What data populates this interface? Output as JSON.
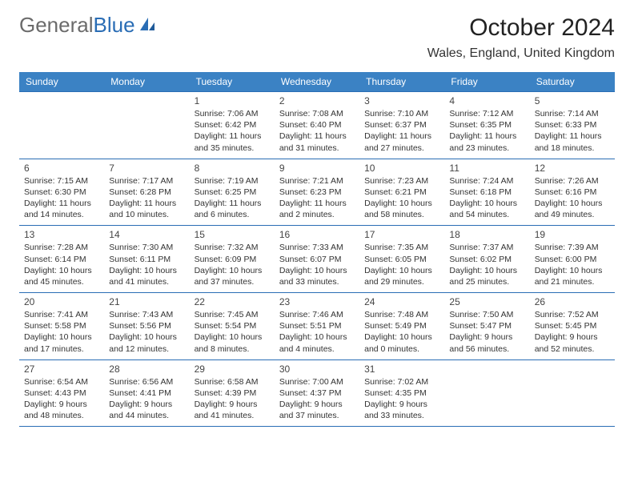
{
  "brand": {
    "part1": "General",
    "part2": "Blue"
  },
  "title": "October 2024",
  "location": "Wales, England, United Kingdom",
  "colors": {
    "header_bg": "#3b82c4",
    "border": "#2a6db5",
    "brand_grey": "#6b6b6b",
    "brand_blue": "#2a6db5"
  },
  "type": "calendar",
  "days_of_week": [
    "Sunday",
    "Monday",
    "Tuesday",
    "Wednesday",
    "Thursday",
    "Friday",
    "Saturday"
  ],
  "weeks": [
    [
      null,
      null,
      {
        "n": "1",
        "sunrise": "7:06 AM",
        "sunset": "6:42 PM",
        "daylight": "11 hours and 35 minutes."
      },
      {
        "n": "2",
        "sunrise": "7:08 AM",
        "sunset": "6:40 PM",
        "daylight": "11 hours and 31 minutes."
      },
      {
        "n": "3",
        "sunrise": "7:10 AM",
        "sunset": "6:37 PM",
        "daylight": "11 hours and 27 minutes."
      },
      {
        "n": "4",
        "sunrise": "7:12 AM",
        "sunset": "6:35 PM",
        "daylight": "11 hours and 23 minutes."
      },
      {
        "n": "5",
        "sunrise": "7:14 AM",
        "sunset": "6:33 PM",
        "daylight": "11 hours and 18 minutes."
      }
    ],
    [
      {
        "n": "6",
        "sunrise": "7:15 AM",
        "sunset": "6:30 PM",
        "daylight": "11 hours and 14 minutes."
      },
      {
        "n": "7",
        "sunrise": "7:17 AM",
        "sunset": "6:28 PM",
        "daylight": "11 hours and 10 minutes."
      },
      {
        "n": "8",
        "sunrise": "7:19 AM",
        "sunset": "6:25 PM",
        "daylight": "11 hours and 6 minutes."
      },
      {
        "n": "9",
        "sunrise": "7:21 AM",
        "sunset": "6:23 PM",
        "daylight": "11 hours and 2 minutes."
      },
      {
        "n": "10",
        "sunrise": "7:23 AM",
        "sunset": "6:21 PM",
        "daylight": "10 hours and 58 minutes."
      },
      {
        "n": "11",
        "sunrise": "7:24 AM",
        "sunset": "6:18 PM",
        "daylight": "10 hours and 54 minutes."
      },
      {
        "n": "12",
        "sunrise": "7:26 AM",
        "sunset": "6:16 PM",
        "daylight": "10 hours and 49 minutes."
      }
    ],
    [
      {
        "n": "13",
        "sunrise": "7:28 AM",
        "sunset": "6:14 PM",
        "daylight": "10 hours and 45 minutes."
      },
      {
        "n": "14",
        "sunrise": "7:30 AM",
        "sunset": "6:11 PM",
        "daylight": "10 hours and 41 minutes."
      },
      {
        "n": "15",
        "sunrise": "7:32 AM",
        "sunset": "6:09 PM",
        "daylight": "10 hours and 37 minutes."
      },
      {
        "n": "16",
        "sunrise": "7:33 AM",
        "sunset": "6:07 PM",
        "daylight": "10 hours and 33 minutes."
      },
      {
        "n": "17",
        "sunrise": "7:35 AM",
        "sunset": "6:05 PM",
        "daylight": "10 hours and 29 minutes."
      },
      {
        "n": "18",
        "sunrise": "7:37 AM",
        "sunset": "6:02 PM",
        "daylight": "10 hours and 25 minutes."
      },
      {
        "n": "19",
        "sunrise": "7:39 AM",
        "sunset": "6:00 PM",
        "daylight": "10 hours and 21 minutes."
      }
    ],
    [
      {
        "n": "20",
        "sunrise": "7:41 AM",
        "sunset": "5:58 PM",
        "daylight": "10 hours and 17 minutes."
      },
      {
        "n": "21",
        "sunrise": "7:43 AM",
        "sunset": "5:56 PM",
        "daylight": "10 hours and 12 minutes."
      },
      {
        "n": "22",
        "sunrise": "7:45 AM",
        "sunset": "5:54 PM",
        "daylight": "10 hours and 8 minutes."
      },
      {
        "n": "23",
        "sunrise": "7:46 AM",
        "sunset": "5:51 PM",
        "daylight": "10 hours and 4 minutes."
      },
      {
        "n": "24",
        "sunrise": "7:48 AM",
        "sunset": "5:49 PM",
        "daylight": "10 hours and 0 minutes."
      },
      {
        "n": "25",
        "sunrise": "7:50 AM",
        "sunset": "5:47 PM",
        "daylight": "9 hours and 56 minutes."
      },
      {
        "n": "26",
        "sunrise": "7:52 AM",
        "sunset": "5:45 PM",
        "daylight": "9 hours and 52 minutes."
      }
    ],
    [
      {
        "n": "27",
        "sunrise": "6:54 AM",
        "sunset": "4:43 PM",
        "daylight": "9 hours and 48 minutes."
      },
      {
        "n": "28",
        "sunrise": "6:56 AM",
        "sunset": "4:41 PM",
        "daylight": "9 hours and 44 minutes."
      },
      {
        "n": "29",
        "sunrise": "6:58 AM",
        "sunset": "4:39 PM",
        "daylight": "9 hours and 41 minutes."
      },
      {
        "n": "30",
        "sunrise": "7:00 AM",
        "sunset": "4:37 PM",
        "daylight": "9 hours and 37 minutes."
      },
      {
        "n": "31",
        "sunrise": "7:02 AM",
        "sunset": "4:35 PM",
        "daylight": "9 hours and 33 minutes."
      },
      null,
      null
    ]
  ],
  "labels": {
    "sunrise": "Sunrise:",
    "sunset": "Sunset:",
    "daylight": "Daylight:"
  }
}
